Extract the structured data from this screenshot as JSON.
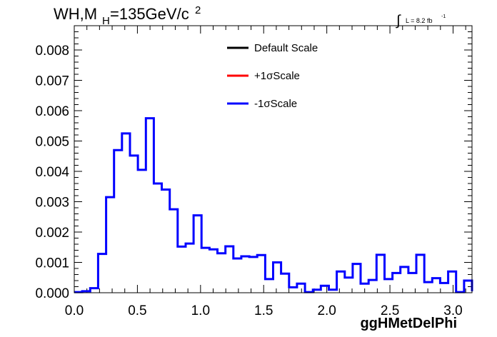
{
  "chart_data": {
    "type": "histogram",
    "title_main": "WH,M",
    "title_sub": "H",
    "title_rest": "=135GeV/c",
    "title_sup": "2",
    "lumi_label": "L = 8.2 fb",
    "lumi_sup": "-1",
    "xlabel": "ggHMetDelPhi",
    "ylabel": "",
    "xlim": [
      0.0,
      3.15
    ],
    "ylim": [
      0.0,
      0.0088
    ],
    "x_ticks": [
      "0.0",
      "0.5",
      "1.0",
      "1.5",
      "2.0",
      "2.5",
      "3.0"
    ],
    "x_tick_values": [
      0.0,
      0.5,
      1.0,
      1.5,
      2.0,
      2.5,
      3.0
    ],
    "y_ticks": [
      "0.000",
      "0.001",
      "0.002",
      "0.003",
      "0.004",
      "0.005",
      "0.006",
      "0.007",
      "0.008"
    ],
    "y_tick_values": [
      0.0,
      0.001,
      0.002,
      0.003,
      0.004,
      0.005,
      0.006,
      0.007,
      0.008
    ],
    "bin_width": 0.063,
    "legend": [
      {
        "label": "Default Scale",
        "color": "#000000"
      },
      {
        "label": "+1σScale",
        "color": "#ff0000"
      },
      {
        "label": "-1σScale",
        "color": "#0000ff"
      }
    ],
    "series": [
      {
        "name": "-1σScale",
        "color": "#0000ff",
        "values": [
          2e-05,
          5e-05,
          0.00015,
          0.00128,
          0.00315,
          0.0047,
          0.00525,
          0.00452,
          0.00405,
          0.00575,
          0.0036,
          0.0034,
          0.00275,
          0.00152,
          0.00162,
          0.00255,
          0.00148,
          0.00143,
          0.0013,
          0.00153,
          0.00113,
          0.0012,
          0.00118,
          0.00124,
          0.00045,
          0.001,
          0.00063,
          0.00018,
          0.0003,
          2e-05,
          0.0001,
          0.00023,
          0.0001,
          0.0007,
          0.0005,
          0.00095,
          0.0003,
          0.00042,
          0.00125,
          0.00045,
          0.00065,
          0.00085,
          0.00065,
          0.00125,
          0.00035,
          0.00048,
          0.00032,
          0.0007,
          2e-05,
          0.0004,
          5e-05
        ]
      }
    ]
  }
}
